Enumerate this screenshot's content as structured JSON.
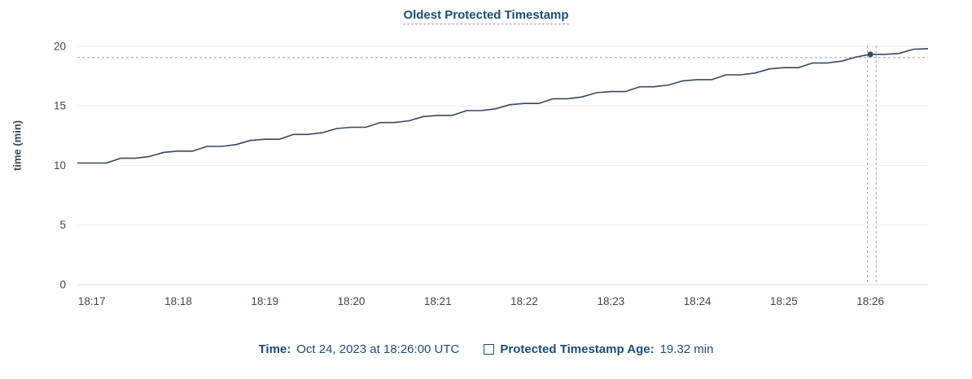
{
  "chart": {
    "title": "Oldest Protected Timestamp",
    "y_axis_label": "time (min)"
  },
  "footer": {
    "time_label": "Time:",
    "time_value": "Oct 24, 2023 at 18:26:00 UTC",
    "series_swatch_icon": "square-outline-icon",
    "series_label": "Protected Timestamp Age:",
    "series_value": "19.32 min"
  },
  "colors": {
    "accent_text": "#1f4c79",
    "title_underline": "#8ea4b8",
    "axis_text": "#3d4754",
    "series_line": "#394760",
    "grid_line": "#efefef",
    "baseline": "#d8dbdf",
    "crosshair": "#9aa4b0"
  },
  "chart_data": {
    "type": "line",
    "title": "Oldest Protected Timestamp",
    "xlabel": "",
    "ylabel": "time (min)",
    "ylim": [
      0,
      20.4
    ],
    "y_ticks": [
      0,
      5,
      10,
      15,
      20
    ],
    "x_tick_labels": [
      "18:17",
      "18:18",
      "18:19",
      "18:20",
      "18:21",
      "18:22",
      "18:23",
      "18:24",
      "18:25",
      "18:26"
    ],
    "x_tick_offsets_sec": [
      10,
      70,
      130,
      190,
      250,
      310,
      370,
      430,
      490,
      550
    ],
    "x_range_sec": [
      0,
      590
    ],
    "grid": "horizontal",
    "legend_position": "bottom",
    "series": [
      {
        "name": "Protected Timestamp Age",
        "unit": "min",
        "points": [
          [
            0,
            10.2
          ],
          [
            10,
            10.2
          ],
          [
            20,
            10.2
          ],
          [
            30,
            10.6
          ],
          [
            40,
            10.6
          ],
          [
            50,
            10.75
          ],
          [
            60,
            11.1
          ],
          [
            70,
            11.2
          ],
          [
            80,
            11.2
          ],
          [
            90,
            11.6
          ],
          [
            100,
            11.6
          ],
          [
            110,
            11.75
          ],
          [
            120,
            12.1
          ],
          [
            130,
            12.2
          ],
          [
            140,
            12.2
          ],
          [
            150,
            12.6
          ],
          [
            160,
            12.6
          ],
          [
            170,
            12.75
          ],
          [
            180,
            13.1
          ],
          [
            190,
            13.2
          ],
          [
            200,
            13.2
          ],
          [
            210,
            13.6
          ],
          [
            220,
            13.6
          ],
          [
            230,
            13.75
          ],
          [
            240,
            14.1
          ],
          [
            250,
            14.2
          ],
          [
            260,
            14.2
          ],
          [
            270,
            14.6
          ],
          [
            280,
            14.6
          ],
          [
            290,
            14.75
          ],
          [
            300,
            15.1
          ],
          [
            310,
            15.2
          ],
          [
            320,
            15.2
          ],
          [
            330,
            15.6
          ],
          [
            340,
            15.6
          ],
          [
            350,
            15.75
          ],
          [
            360,
            16.1
          ],
          [
            370,
            16.2
          ],
          [
            380,
            16.2
          ],
          [
            390,
            16.6
          ],
          [
            400,
            16.6
          ],
          [
            410,
            16.75
          ],
          [
            420,
            17.1
          ],
          [
            430,
            17.2
          ],
          [
            440,
            17.2
          ],
          [
            450,
            17.6
          ],
          [
            460,
            17.6
          ],
          [
            470,
            17.75
          ],
          [
            480,
            18.1
          ],
          [
            490,
            18.2
          ],
          [
            500,
            18.2
          ],
          [
            510,
            18.6
          ],
          [
            520,
            18.6
          ],
          [
            530,
            18.75
          ],
          [
            540,
            19.1
          ],
          [
            550,
            19.32
          ],
          [
            560,
            19.32
          ],
          [
            570,
            19.4
          ],
          [
            580,
            19.75
          ],
          [
            590,
            19.8
          ]
        ]
      }
    ],
    "hover": {
      "date": "Oct 24, 2023",
      "time": "18:26:00 UTC",
      "value": 19.32,
      "t_sec": 550,
      "crosshair_vlines_sec": [
        548,
        554
      ],
      "crosshair_hline_value": 19.05
    }
  }
}
